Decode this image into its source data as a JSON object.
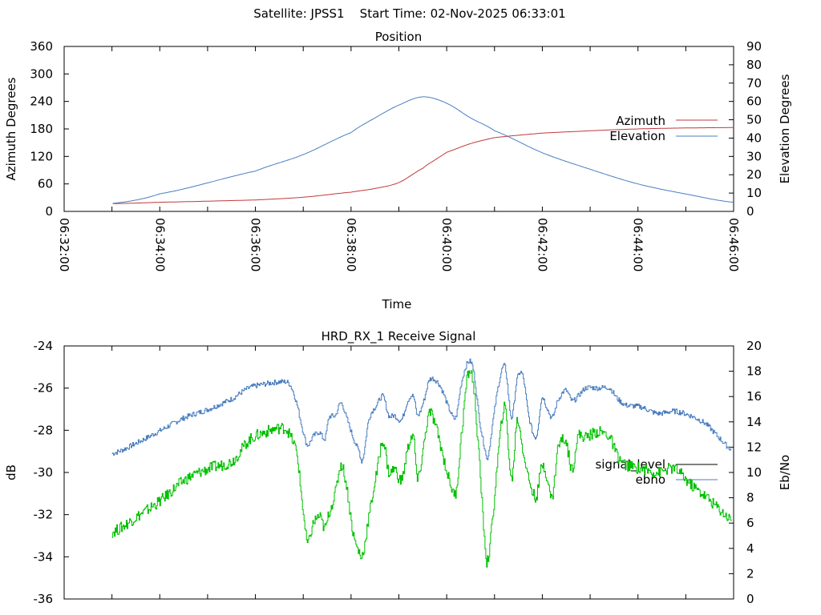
{
  "header": {
    "title": "Satellite: JPSS1    Start Time: 02-Nov-2025 06:33:01"
  },
  "colors": {
    "azimuth": "#c0393b",
    "elevation": "#4a7fc1",
    "signal": "#4a7fc1",
    "ebno": "#00c000",
    "legend_signal": "#000000",
    "legend_ebno": "#4a7fc1"
  },
  "chart_data": [
    {
      "type": "line",
      "title": "Position",
      "xlabel": "Time",
      "ylabel": "Azimuth Degrees",
      "y2label": "Elevation Degrees",
      "x_origin": "06:32:00",
      "xlim_seconds": [
        0,
        840
      ],
      "ylim": [
        0,
        360
      ],
      "y2lim": [
        0,
        90
      ],
      "xticks": [
        "06:32:00",
        "06:34:00",
        "06:36:00",
        "06:38:00",
        "06:40:00",
        "06:42:00",
        "06:44:00",
        "06:46:00"
      ],
      "yticks": [
        "0",
        "60",
        "120",
        "180",
        "240",
        "300",
        "360"
      ],
      "y2ticks": [
        "0",
        "10",
        "20",
        "30",
        "40",
        "50",
        "60",
        "70",
        "80",
        "90"
      ],
      "legend_position": "right",
      "series": [
        {
          "name": "Azimuth",
          "axis": "y1",
          "t": [
            61,
            120,
            240,
            300,
            360,
            390,
            420,
            450,
            465,
            480,
            510,
            540,
            600,
            720,
            840
          ],
          "values": [
            17,
            20,
            25,
            31,
            42,
            50,
            63,
            94,
            112,
            129,
            148,
            161,
            171,
            180,
            183
          ]
        },
        {
          "name": "Elevation",
          "axis": "y2",
          "t": [
            61,
            120,
            240,
            300,
            360,
            390,
            420,
            450,
            480,
            510,
            540,
            600,
            660,
            720,
            780,
            840
          ],
          "values": [
            4.4,
            9.6,
            22,
            31,
            43,
            51,
            58,
            62.5,
            59,
            51,
            44,
            32,
            23,
            15,
            9.5,
            5
          ]
        }
      ]
    },
    {
      "type": "line",
      "title": "HRD_RX_1 Receive Signal",
      "ylabel": "dB",
      "y2label": "Eb/No",
      "x_origin": "06:32:00",
      "xlim_seconds": [
        0,
        840
      ],
      "ylim": [
        -36,
        -24
      ],
      "y2lim": [
        0,
        20
      ],
      "yticks": [
        "-36",
        "-34",
        "-32",
        "-30",
        "-28",
        "-26",
        "-24"
      ],
      "y2ticks": [
        "0",
        "2",
        "4",
        "6",
        "8",
        "10",
        "12",
        "14",
        "16",
        "18",
        "20"
      ],
      "legend_position": "right",
      "t": [
        60,
        91,
        121,
        151,
        181,
        211,
        231,
        252,
        277,
        284,
        292,
        300,
        305,
        312,
        320,
        327,
        332,
        340,
        347,
        354,
        362,
        370,
        374,
        382,
        392,
        400,
        407,
        414,
        423,
        431,
        438,
        443,
        451,
        458,
        468,
        475,
        483,
        491,
        498,
        506,
        513,
        521,
        528,
        531,
        538,
        545,
        553,
        561,
        568,
        575,
        583,
        592,
        599,
        604,
        612,
        619,
        629,
        637,
        644,
        654,
        669,
        684,
        694,
        704,
        724,
        744,
        765,
        785,
        805,
        820,
        837
      ],
      "series": [
        {
          "name": "signal_level",
          "axis": "y1",
          "values": [
            -29.1,
            -28.6,
            -28.0,
            -27.4,
            -27.0,
            -26.5,
            -26.0,
            -25.8,
            -25.7,
            -25.9,
            -26.8,
            -28.1,
            -28.7,
            -28.3,
            -28.1,
            -28.4,
            -27.4,
            -27.3,
            -26.7,
            -27.4,
            -28.3,
            -29.0,
            -29.4,
            -27.5,
            -26.8,
            -26.4,
            -27.3,
            -27.3,
            -27.5,
            -26.6,
            -26.4,
            -27.3,
            -26.6,
            -25.6,
            -25.7,
            -26.2,
            -27.0,
            -27.4,
            -25.8,
            -24.8,
            -25.1,
            -27.5,
            -28.9,
            -29.3,
            -27.5,
            -25.8,
            -25.0,
            -27.4,
            -25.6,
            -25.4,
            -27.4,
            -28.3,
            -26.5,
            -26.8,
            -27.4,
            -26.6,
            -26.1,
            -26.6,
            -26.4,
            -26.0,
            -26.0,
            -26.0,
            -26.5,
            -26.8,
            -26.9,
            -27.2,
            -27.1,
            -27.3,
            -27.7,
            -28.3,
            -28.9
          ]
        },
        {
          "name": "ebno",
          "axis": "y2",
          "values": [
            5.3,
            6.5,
            7.8,
            9.4,
            10.3,
            10.9,
            12.5,
            13.2,
            13.5,
            12.8,
            11.3,
            6.8,
            4.4,
            5.9,
            6.5,
            5.6,
            6.8,
            8.4,
            10.6,
            8.9,
            5.3,
            3.7,
            3.5,
            6.5,
            10.0,
            12.5,
            10.0,
            10.3,
            9.4,
            11.9,
            12.8,
            9.4,
            12.2,
            14.7,
            13.2,
            11.3,
            9.4,
            8.4,
            12.8,
            17.6,
            17.0,
            10.6,
            4.3,
            3.0,
            6.8,
            11.9,
            15.1,
            9.4,
            14.1,
            11.9,
            9.4,
            8.1,
            10.5,
            10.0,
            8.0,
            11.9,
            12.5,
            10.3,
            12.8,
            12.8,
            13.2,
            12.8,
            11.3,
            10.6,
            10.3,
            10.0,
            10.3,
            9.1,
            8.1,
            7.2,
            6.3
          ]
        }
      ]
    }
  ]
}
